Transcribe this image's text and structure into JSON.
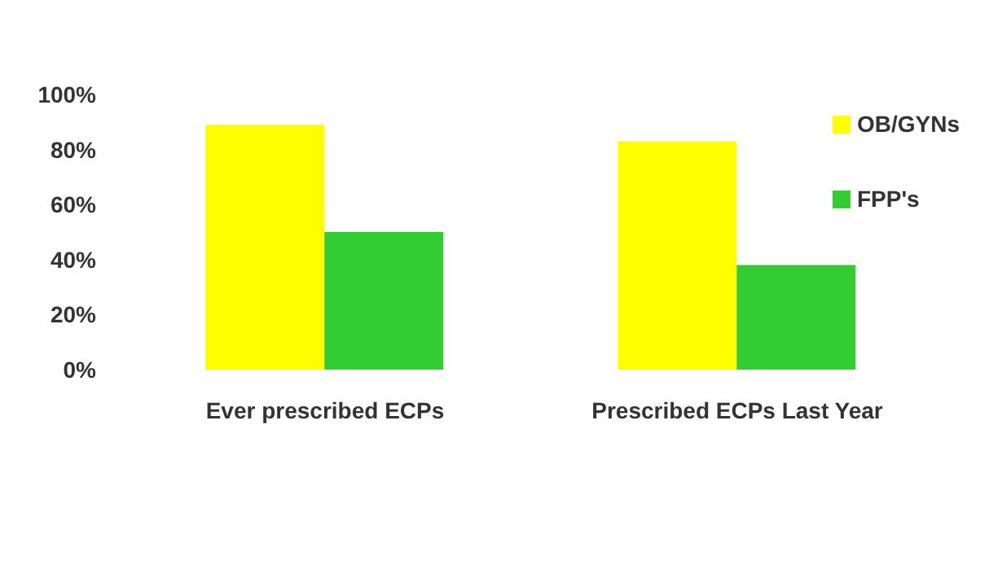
{
  "chart_data": {
    "type": "bar",
    "categories": [
      "Ever prescribed ECPs",
      "Prescribed ECPs Last Year"
    ],
    "series": [
      {
        "name": "OB/GYNs",
        "color": "#ffff00",
        "values": [
          89,
          83
        ]
      },
      {
        "name": "FPP's",
        "color": "#33cc33",
        "values": [
          50,
          38
        ]
      }
    ],
    "ylim": [
      0,
      100
    ],
    "yticks": [
      {
        "value": 0,
        "label": "0%"
      },
      {
        "value": 20,
        "label": "20%"
      },
      {
        "value": 40,
        "label": "40%"
      },
      {
        "value": 60,
        "label": "60%"
      },
      {
        "value": 80,
        "label": "80%"
      },
      {
        "value": 100,
        "label": "100%"
      }
    ],
    "grid": false,
    "legend": "top right"
  }
}
